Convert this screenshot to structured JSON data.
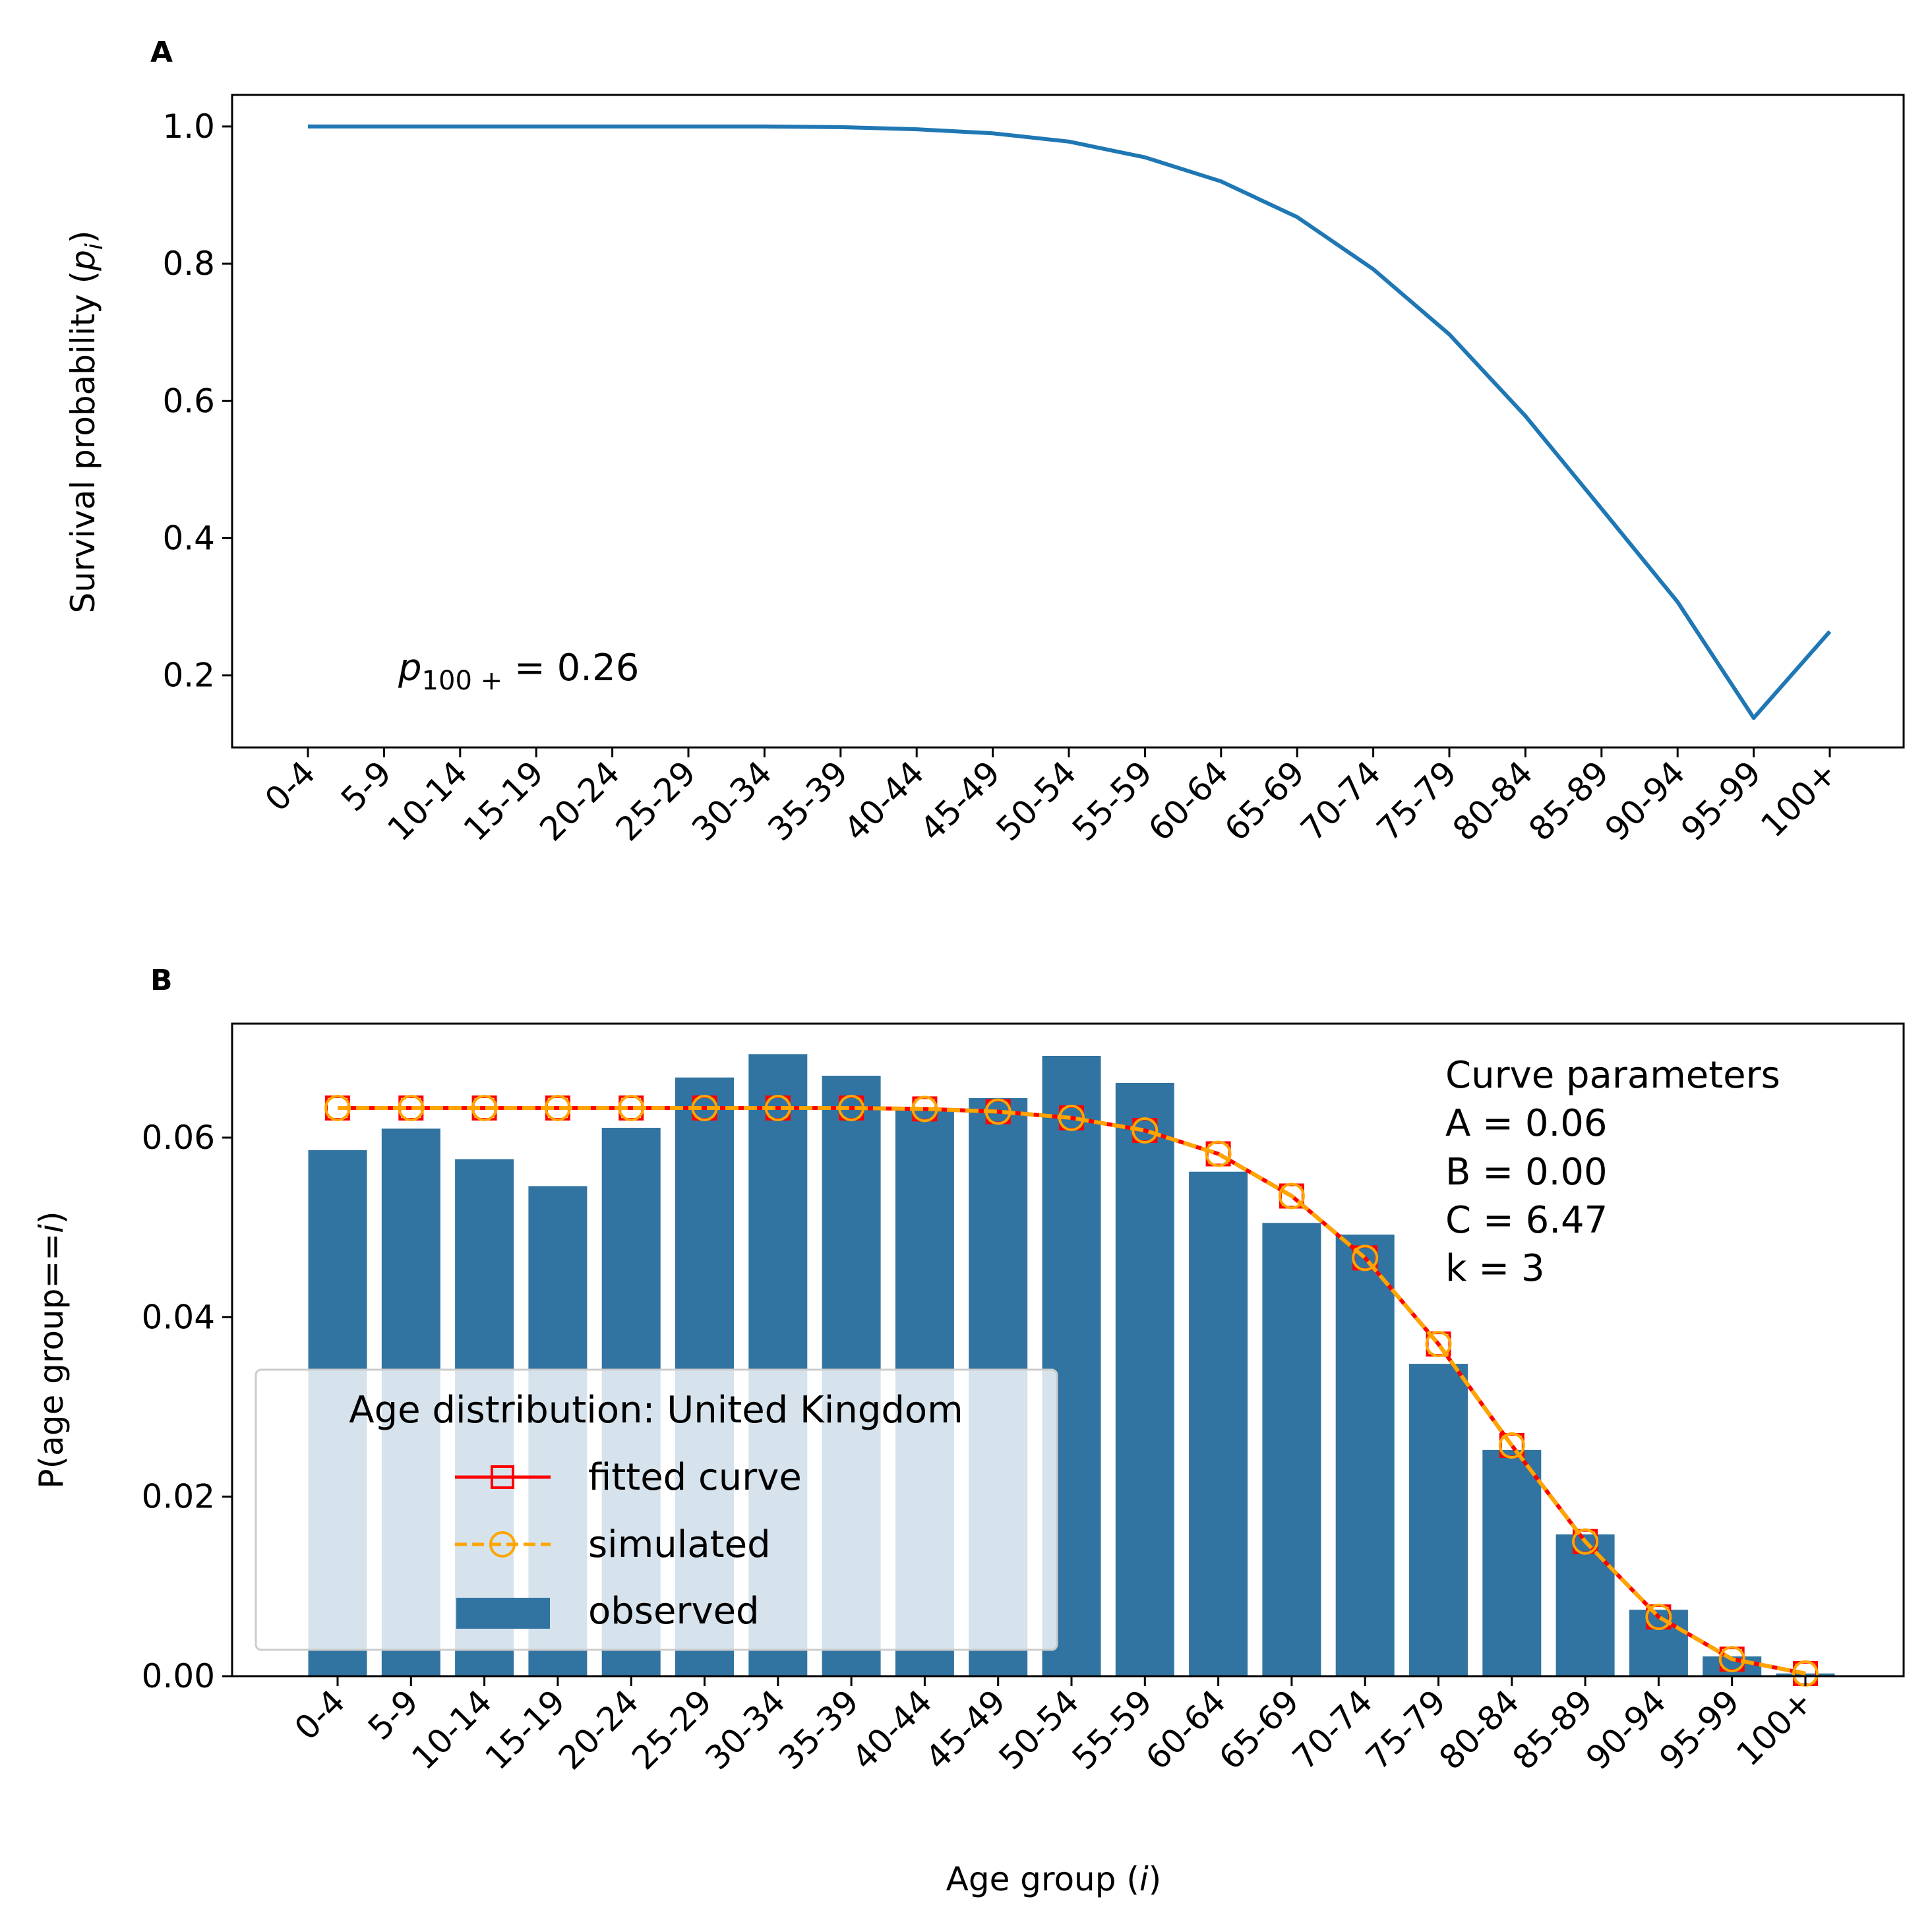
{
  "chart_data": [
    {
      "panel": "A",
      "type": "line",
      "categories": [
        "0-4",
        "5-9",
        "10-14",
        "15-19",
        "20-24",
        "25-29",
        "30-34",
        "35-39",
        "40-44",
        "45-49",
        "50-54",
        "55-59",
        "60-64",
        "65-69",
        "70-74",
        "75-79",
        "80-84",
        "85-89",
        "90-94",
        "95-99",
        "100+"
      ],
      "series": [
        {
          "values": [
            1.0,
            1.0,
            1.0,
            1.0,
            1.0,
            1.0,
            1.0,
            0.999,
            0.996,
            0.99,
            0.978,
            0.955,
            0.92,
            0.868,
            0.792,
            0.697,
            0.578,
            0.443,
            0.307,
            0.138,
            0.264
          ],
          "color": "#1f77b4"
        }
      ],
      "ylabel_text": "Survival probability (",
      "ylabel_var": "p",
      "ylabel_sub": "i",
      "ylabel_close": ")",
      "ylim": [
        0.095,
        1.046
      ],
      "yticks": [
        0.2,
        0.4,
        0.6,
        0.8,
        1.0
      ],
      "ytick_labels": [
        "0.2",
        "0.4",
        "0.6",
        "0.8",
        "1.0"
      ],
      "annotation": {
        "var": "p",
        "sub": "100 +",
        "rest": " = 0.26"
      },
      "grid": false
    },
    {
      "panel": "B",
      "type": "bar",
      "categories": [
        "0-4",
        "5-9",
        "10-14",
        "15-19",
        "20-24",
        "25-29",
        "30-34",
        "35-39",
        "40-44",
        "45-49",
        "50-54",
        "55-59",
        "60-64",
        "65-69",
        "70-74",
        "75-79",
        "80-84",
        "85-89",
        "90-94",
        "95-99",
        "100+"
      ],
      "series": [
        {
          "name": "observed",
          "kind": "bar",
          "color": "#3274a1",
          "values": [
            0.0586,
            0.061,
            0.0576,
            0.0546,
            0.0611,
            0.0667,
            0.0693,
            0.0669,
            0.0631,
            0.0644,
            0.0691,
            0.0661,
            0.0562,
            0.0505,
            0.0492,
            0.0348,
            0.0252,
            0.0158,
            0.0074,
            0.0022,
            0.0003
          ]
        },
        {
          "name": "fitted curve",
          "kind": "line-square",
          "color": "#ff0000",
          "values": [
            0.0633,
            0.0633,
            0.0633,
            0.0633,
            0.0633,
            0.0633,
            0.0633,
            0.0633,
            0.0632,
            0.0629,
            0.0622,
            0.0608,
            0.0582,
            0.0535,
            0.0466,
            0.037,
            0.0257,
            0.015,
            0.0066,
            0.0019,
            0.0003
          ]
        },
        {
          "name": "simulated",
          "kind": "dashed-circle",
          "color": "#ffa500",
          "values": [
            0.0633,
            0.0633,
            0.0633,
            0.0633,
            0.0633,
            0.0633,
            0.0633,
            0.0633,
            0.0632,
            0.0629,
            0.0622,
            0.0608,
            0.0582,
            0.0535,
            0.0466,
            0.037,
            0.0257,
            0.015,
            0.0066,
            0.0019,
            0.0003
          ]
        }
      ],
      "xlabel_text": "Age group (",
      "xlabel_var": "i",
      "xlabel_close": ")",
      "ylabel_text": "P(age group==",
      "ylabel_var": "i",
      "ylabel_close": ")",
      "ylim": [
        0,
        0.0727
      ],
      "yticks": [
        0,
        0.02,
        0.04,
        0.06
      ],
      "ytick_labels": [
        "0.00",
        "0.02",
        "0.04",
        "0.06"
      ],
      "legend_title": "Age distribution: United Kingdom",
      "legend_placement": "lower-left",
      "annotations": [
        "Curve parameters",
        "A = 0.06",
        "B = 0.00",
        "C = 6.47",
        "k = 3"
      ],
      "grid": false
    }
  ]
}
